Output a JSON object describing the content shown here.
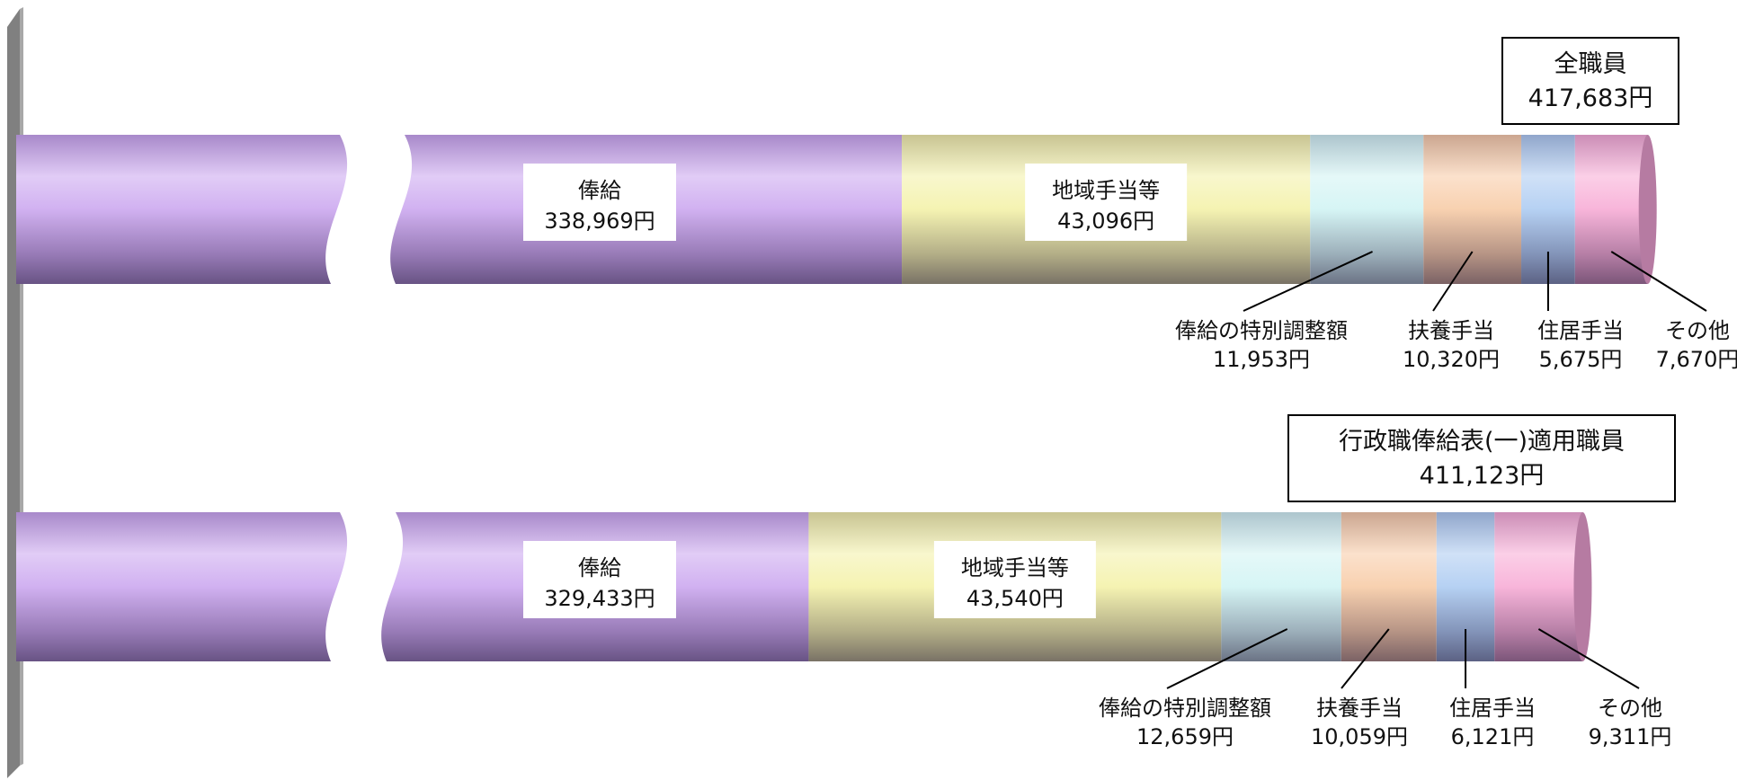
{
  "chart_data": {
    "type": "bar",
    "orientation": "horizontal",
    "stacked": true,
    "axis_break": true,
    "segment_names": [
      "俸給",
      "地域手当等",
      "俸給の特別調整額",
      "扶養手当",
      "住居手当",
      "その他"
    ],
    "bars": [
      {
        "group_title": "全職員",
        "total_label": "417,683円",
        "total": 417683,
        "segments": [
          {
            "name": "俸給",
            "value": 338969,
            "value_label": "338,969円"
          },
          {
            "name": "地域手当等",
            "value": 43096,
            "value_label": "43,096円"
          },
          {
            "name": "俸給の特別調整額",
            "value": 11953,
            "value_label": "11,953円"
          },
          {
            "name": "扶養手当",
            "value": 10320,
            "value_label": "10,320円"
          },
          {
            "name": "住居手当",
            "value": 5675,
            "value_label": "5,675円"
          },
          {
            "name": "その他",
            "value": 7670,
            "value_label": "7,670円"
          }
        ]
      },
      {
        "group_title": "行政職俸給表(一)適用職員",
        "total_label": "411,123円",
        "total": 411123,
        "segments": [
          {
            "name": "俸給",
            "value": 329433,
            "value_label": "329,433円"
          },
          {
            "name": "地域手当等",
            "value": 43540,
            "value_label": "43,540円"
          },
          {
            "name": "俸給の特別調整額",
            "value": 12659,
            "value_label": "12,659円"
          },
          {
            "name": "扶養手当",
            "value": 10059,
            "value_label": "10,059円"
          },
          {
            "name": "住居手当",
            "value": 6121,
            "value_label": "6,121円"
          },
          {
            "name": "その他",
            "value": 9311,
            "value_label": "9,311円"
          }
        ]
      }
    ],
    "colors": {
      "俸給": "#c9a3ef",
      "地域手当等": "#f3f1a4",
      "俸給の特別調整額": "#cff3f3",
      "扶養手当": "#f7c9a2",
      "住居手当": "#a9c9f1",
      "その他": "#f7a8d4"
    },
    "axis_color": "#808080",
    "grid": false,
    "legend": "none"
  }
}
